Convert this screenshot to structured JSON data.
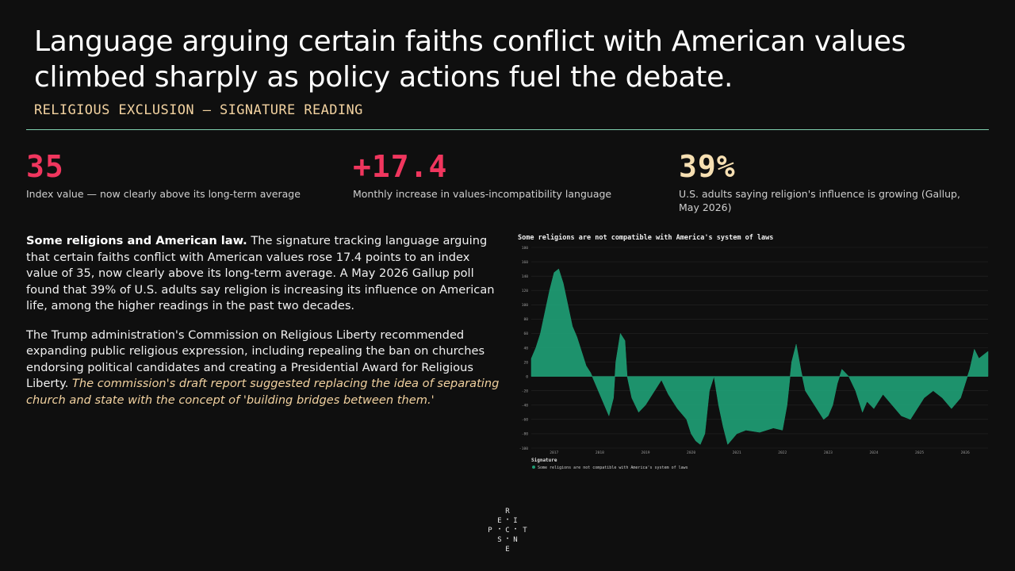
{
  "header": {
    "title": "Language arguing certain faiths conflict with American values climbed sharply as policy actions fuel the debate.",
    "subtitle": "RELIGIOUS EXCLUSION — SIGNATURE READING"
  },
  "stats": [
    {
      "value": "35",
      "label": "Index value — now clearly above its long-term average",
      "color": "#f0365e"
    },
    {
      "value": "+17.4",
      "label": "Monthly increase in values-incompatibility language",
      "color": "#f0365e"
    },
    {
      "value": "39%",
      "label": "U.S. adults saying religion's influence is growing (Gallup, May 2026)",
      "color": "#f6dfb2"
    }
  ],
  "body": {
    "p1_lead": "Some religions and American law.",
    "p1_text": " The signature tracking language arguing that certain faiths conflict with American values rose 17.4 points to an index value of 35, now clearly above its long-term average. A May 2026 Gallup poll found that 39% of U.S. adults say religion is increasing its influence on American life, among the higher readings in the past two decades.",
    "p2_text": "The Trump administration's Commission on Religious Liberty recommended expanding public religious expression, including repealing the ban on churches endorsing political candidates and creating a Presidential Award for Religious Liberty. ",
    "p2_italic": "The commission's draft report suggested replacing the idea of separating church and state with the concept of 'building bridges between them.'"
  },
  "chart_data": {
    "type": "area",
    "title": "Some religions are not compatible with America's system of laws",
    "legend_title": "Signature",
    "legend_position": "bottom-left",
    "series": [
      {
        "name": "Some religions are not compatible with America's system of laws",
        "color": "#1f9a72",
        "points": [
          [
            2016.5,
            25
          ],
          [
            2016.6,
            40
          ],
          [
            2016.7,
            60
          ],
          [
            2016.8,
            90
          ],
          [
            2016.9,
            120
          ],
          [
            2017.0,
            145
          ],
          [
            2017.1,
            150
          ],
          [
            2017.2,
            130
          ],
          [
            2017.3,
            100
          ],
          [
            2017.4,
            70
          ],
          [
            2017.5,
            55
          ],
          [
            2017.6,
            35
          ],
          [
            2017.7,
            15
          ],
          [
            2017.8,
            5
          ],
          [
            2017.9,
            -10
          ],
          [
            2018.0,
            -25
          ],
          [
            2018.1,
            -40
          ],
          [
            2018.2,
            -55
          ],
          [
            2018.3,
            -30
          ],
          [
            2018.35,
            20
          ],
          [
            2018.45,
            60
          ],
          [
            2018.55,
            50
          ],
          [
            2018.6,
            0
          ],
          [
            2018.7,
            -30
          ],
          [
            2018.85,
            -50
          ],
          [
            2019.0,
            -40
          ],
          [
            2019.2,
            -20
          ],
          [
            2019.35,
            -5
          ],
          [
            2019.5,
            -25
          ],
          [
            2019.7,
            -45
          ],
          [
            2019.9,
            -60
          ],
          [
            2020.0,
            -80
          ],
          [
            2020.1,
            -90
          ],
          [
            2020.2,
            -95
          ],
          [
            2020.3,
            -80
          ],
          [
            2020.4,
            -20
          ],
          [
            2020.5,
            0
          ],
          [
            2020.6,
            -40
          ],
          [
            2020.7,
            -70
          ],
          [
            2020.8,
            -95
          ],
          [
            2021.0,
            -80
          ],
          [
            2021.2,
            -75
          ],
          [
            2021.5,
            -78
          ],
          [
            2021.8,
            -72
          ],
          [
            2022.0,
            -75
          ],
          [
            2022.1,
            -40
          ],
          [
            2022.2,
            20
          ],
          [
            2022.3,
            45
          ],
          [
            2022.4,
            10
          ],
          [
            2022.5,
            -20
          ],
          [
            2022.7,
            -40
          ],
          [
            2022.9,
            -60
          ],
          [
            2023.0,
            -55
          ],
          [
            2023.1,
            -40
          ],
          [
            2023.2,
            -10
          ],
          [
            2023.3,
            10
          ],
          [
            2023.45,
            0
          ],
          [
            2023.6,
            -20
          ],
          [
            2023.75,
            -50
          ],
          [
            2023.85,
            -35
          ],
          [
            2024.0,
            -45
          ],
          [
            2024.2,
            -25
          ],
          [
            2024.4,
            -40
          ],
          [
            2024.6,
            -55
          ],
          [
            2024.8,
            -60
          ],
          [
            2024.95,
            -45
          ],
          [
            2025.1,
            -30
          ],
          [
            2025.3,
            -20
          ],
          [
            2025.5,
            -30
          ],
          [
            2025.7,
            -45
          ],
          [
            2025.9,
            -30
          ],
          [
            2026.0,
            -10
          ],
          [
            2026.1,
            10
          ],
          [
            2026.2,
            38
          ],
          [
            2026.3,
            25
          ],
          [
            2026.5,
            35
          ]
        ]
      }
    ],
    "x_ticks": [
      "2017",
      "2018",
      "2019",
      "2020",
      "2021",
      "2022",
      "2023",
      "2024",
      "2025",
      "2026"
    ],
    "x_tick_values": [
      2017,
      2018,
      2019,
      2020,
      2021,
      2022,
      2023,
      2024,
      2025,
      2026
    ],
    "xlim": [
      2016.5,
      2026.5
    ],
    "y_ticks": [
      180,
      160,
      140,
      120,
      100,
      80,
      60,
      40,
      20,
      0,
      -20,
      -40,
      -60,
      -80,
      -100
    ],
    "ylim": [
      -100,
      180
    ],
    "grid": true
  },
  "logo": {
    "letters": [
      "R",
      "E",
      "I",
      "C",
      "P",
      "T",
      "S",
      "N",
      "E"
    ]
  }
}
